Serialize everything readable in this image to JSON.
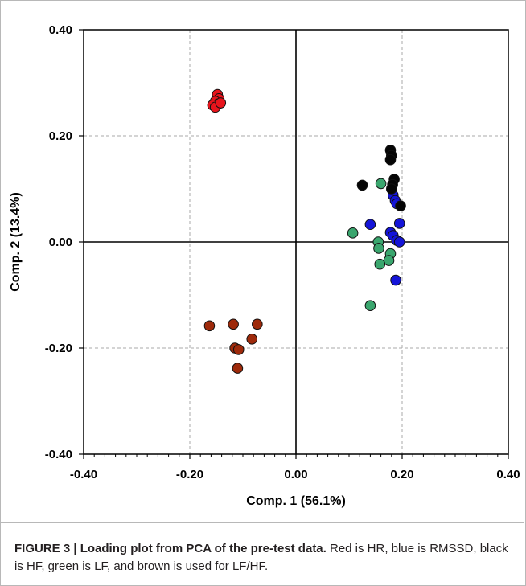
{
  "caption": {
    "lead": "FIGURE 3 | Loading plot from PCA of the pre-test data.",
    "body": " Red is HR, blue is RMSSD, black is HF, green is LF, and brown is used for LF/HF."
  },
  "chart_data": {
    "type": "scatter",
    "title": "",
    "xlabel": "Comp. 1 (56.1%)",
    "ylabel": "Comp. 2 (13.4%)",
    "xlim": [
      -0.4,
      0.4
    ],
    "ylim": [
      -0.4,
      0.4
    ],
    "xticks": [
      -0.4,
      -0.2,
      0.0,
      0.2,
      0.4
    ],
    "yticks": [
      -0.4,
      -0.2,
      0.0,
      0.2,
      0.4
    ],
    "tick_labels_x": [
      "-0.40",
      "-0.20",
      "0.00",
      "0.20",
      "0.40"
    ],
    "tick_labels_y": [
      "-0.40",
      "-0.20",
      "0.00",
      "0.20",
      "0.40"
    ],
    "grid": true,
    "legend": "none",
    "series": [
      {
        "color": "#e8141c",
        "points": [
          [
            -0.148,
            0.278
          ],
          [
            -0.145,
            0.27
          ],
          [
            -0.152,
            0.265
          ],
          [
            -0.147,
            0.26
          ],
          [
            -0.157,
            0.258
          ],
          [
            -0.152,
            0.254
          ],
          [
            -0.142,
            0.262
          ]
        ]
      },
      {
        "color": "#1414d8",
        "points": [
          [
            0.183,
            0.088
          ],
          [
            0.187,
            0.078
          ],
          [
            0.19,
            0.072
          ],
          [
            0.14,
            0.033
          ],
          [
            0.195,
            0.035
          ],
          [
            0.178,
            0.018
          ],
          [
            0.183,
            0.012
          ],
          [
            0.19,
            0.003
          ],
          [
            0.195,
            0.0
          ],
          [
            0.188,
            -0.072
          ]
        ]
      },
      {
        "color": "#050505",
        "points": [
          [
            0.178,
            0.173
          ],
          [
            0.18,
            0.163
          ],
          [
            0.178,
            0.155
          ],
          [
            0.185,
            0.118
          ],
          [
            0.182,
            0.108
          ],
          [
            0.125,
            0.107
          ],
          [
            0.18,
            0.1
          ],
          [
            0.197,
            0.068
          ]
        ]
      },
      {
        "color": "#3aa66e",
        "points": [
          [
            0.16,
            0.11
          ],
          [
            0.107,
            0.017
          ],
          [
            0.155,
            0.0
          ],
          [
            0.156,
            -0.012
          ],
          [
            0.178,
            -0.022
          ],
          [
            0.175,
            -0.035
          ],
          [
            0.158,
            -0.042
          ],
          [
            0.14,
            -0.12
          ]
        ]
      },
      {
        "color": "#9e2a0b",
        "points": [
          [
            -0.163,
            -0.158
          ],
          [
            -0.118,
            -0.155
          ],
          [
            -0.073,
            -0.155
          ],
          [
            -0.083,
            -0.183
          ],
          [
            -0.115,
            -0.2
          ],
          [
            -0.108,
            -0.203
          ],
          [
            -0.11,
            -0.238
          ]
        ]
      }
    ]
  }
}
